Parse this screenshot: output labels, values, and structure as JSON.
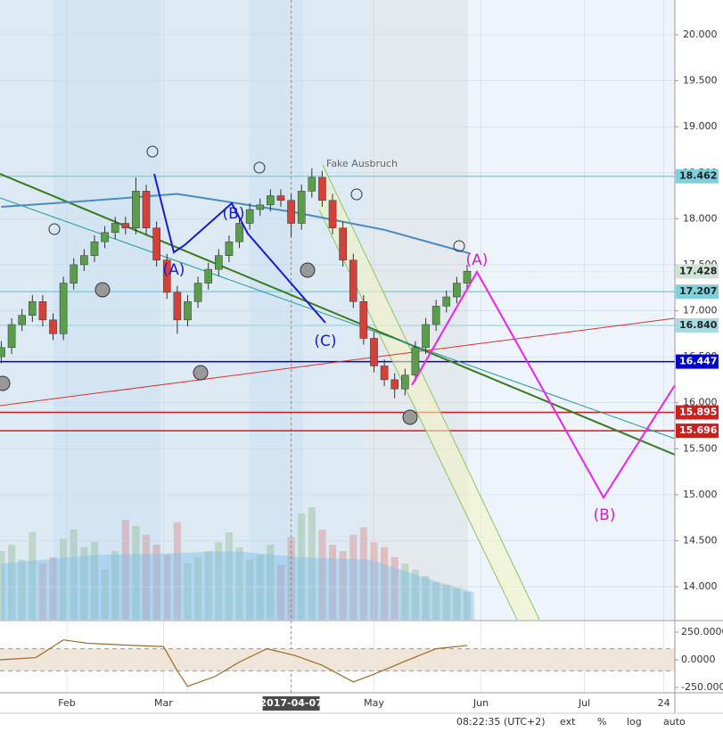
{
  "chart_data": {
    "type": "candlestick",
    "xlim": [
      12.62,
      208.2
    ],
    "ylim": [
      13.642,
      20.378
    ],
    "xticks": [
      {
        "value": 32,
        "label": "Feb"
      },
      {
        "value": 60,
        "label": "Mar"
      },
      {
        "value": 97,
        "label": "2017-04-07"
      },
      {
        "value": 121,
        "label": "May"
      },
      {
        "value": 152,
        "label": "Jun"
      },
      {
        "value": 182,
        "label": "Jul"
      },
      {
        "value": 205,
        "label": "24"
      }
    ],
    "crosshair": 97,
    "yticks": [
      {
        "value": 14,
        "label": "14.000"
      },
      {
        "value": 14.5,
        "label": "14.500"
      },
      {
        "value": 15,
        "label": "15.000"
      },
      {
        "value": 15.5,
        "label": "15.500"
      },
      {
        "value": 16,
        "label": "16.000"
      },
      {
        "value": 16.5,
        "label": "16.500"
      },
      {
        "value": 17,
        "label": "17.000"
      },
      {
        "value": 17.5,
        "label": "17.500"
      },
      {
        "value": 18,
        "label": "18.000"
      },
      {
        "value": 18.5,
        "label": "18.500"
      },
      {
        "value": 19,
        "label": "19.000"
      },
      {
        "value": 19.5,
        "label": "19.500"
      },
      {
        "value": 20,
        "label": "20.000"
      }
    ],
    "up_color": "#5a9e4b",
    "down_color": "#d2423b",
    "x": [
      13,
      16,
      19,
      22,
      25,
      28,
      31,
      34,
      37,
      40,
      43,
      46,
      49,
      52,
      55,
      58,
      61,
      64,
      67,
      70,
      73,
      76,
      79,
      82,
      85,
      88,
      91,
      94,
      97,
      100,
      103,
      106,
      109,
      112,
      115,
      118,
      121,
      124,
      127,
      130,
      133,
      136,
      139,
      142,
      145,
      148
    ],
    "candles": [
      [
        16.5,
        16.67,
        16.43,
        16.6
      ],
      [
        16.6,
        16.92,
        16.53,
        16.85
      ],
      [
        16.85,
        17.02,
        16.78,
        16.95
      ],
      [
        16.95,
        17.17,
        16.88,
        17.1
      ],
      [
        17.1,
        17.17,
        16.83,
        16.9
      ],
      [
        16.9,
        16.97,
        16.68,
        16.75
      ],
      [
        16.75,
        17.37,
        16.68,
        17.3
      ],
      [
        17.3,
        17.57,
        17.23,
        17.5
      ],
      [
        17.5,
        17.67,
        17.43,
        17.6
      ],
      [
        17.6,
        17.82,
        17.53,
        17.75
      ],
      [
        17.75,
        17.92,
        17.68,
        17.85
      ],
      [
        17.85,
        18.02,
        17.78,
        17.95
      ],
      [
        17.95,
        18.02,
        17.83,
        17.9
      ],
      [
        17.9,
        18.45,
        17.83,
        18.3
      ],
      [
        18.3,
        18.37,
        17.83,
        17.9
      ],
      [
        17.9,
        17.97,
        17.48,
        17.55
      ],
      [
        17.55,
        17.62,
        17.13,
        17.2
      ],
      [
        17.2,
        17.27,
        16.75,
        16.9
      ],
      [
        16.9,
        17.17,
        16.83,
        17.1
      ],
      [
        17.1,
        17.37,
        17.03,
        17.3
      ],
      [
        17.3,
        17.52,
        17.23,
        17.45
      ],
      [
        17.45,
        17.67,
        17.38,
        17.6
      ],
      [
        17.6,
        17.82,
        17.53,
        17.75
      ],
      [
        17.75,
        18.02,
        17.68,
        17.95
      ],
      [
        17.95,
        18.17,
        17.88,
        18.1
      ],
      [
        18.1,
        18.22,
        18.03,
        18.15
      ],
      [
        18.15,
        18.32,
        18.08,
        18.25
      ],
      [
        18.25,
        18.32,
        18.13,
        18.2
      ],
      [
        18.2,
        18.27,
        17.8,
        17.95
      ],
      [
        17.95,
        18.37,
        17.88,
        18.3
      ],
      [
        18.3,
        18.55,
        18.23,
        18.45
      ],
      [
        18.45,
        18.52,
        18.13,
        18.2
      ],
      [
        18.2,
        18.27,
        17.83,
        17.9
      ],
      [
        17.9,
        17.97,
        17.48,
        17.55
      ],
      [
        17.55,
        17.62,
        17.03,
        17.1
      ],
      [
        17.1,
        17.17,
        16.63,
        16.7
      ],
      [
        16.7,
        16.77,
        16.33,
        16.4
      ],
      [
        16.4,
        16.47,
        16.18,
        16.25
      ],
      [
        16.25,
        16.32,
        16.05,
        16.15
      ],
      [
        16.15,
        16.37,
        16.08,
        16.3
      ],
      [
        16.3,
        16.67,
        16.23,
        16.6
      ],
      [
        16.6,
        16.92,
        16.53,
        16.85
      ],
      [
        16.85,
        17.12,
        16.78,
        17.05
      ],
      [
        17.05,
        17.22,
        16.98,
        17.15
      ],
      [
        17.15,
        17.37,
        17.08,
        17.3
      ],
      [
        17.3,
        17.5,
        17.23,
        17.43
      ]
    ],
    "volume": {
      "lim": [
        0,
        100
      ],
      "values": [
        55,
        60,
        48,
        70,
        45,
        50,
        65,
        72,
        58,
        62,
        40,
        55,
        80,
        75,
        68,
        60,
        52,
        78,
        45,
        50,
        55,
        62,
        70,
        58,
        48,
        52,
        60,
        44,
        66,
        85,
        90,
        72,
        60,
        55,
        68,
        74,
        62,
        58,
        50,
        45,
        40,
        35,
        30,
        28,
        25,
        22
      ]
    },
    "volume_ma": {
      "x": [
        13,
        40,
        60,
        80,
        100,
        120,
        140,
        150
      ],
      "values": [
        45,
        52,
        53,
        55,
        50,
        48,
        30,
        22
      ],
      "color": "#7fbfea"
    },
    "moving_average": {
      "x": [
        13,
        40,
        64,
        98,
        124,
        149
      ],
      "values": [
        18.13,
        18.2,
        18.27,
        18.07,
        17.88,
        17.62
      ],
      "color": "#4a8cc2"
    },
    "levels": [
      {
        "value": 18.462,
        "color": "#7fd0dc",
        "text_color": "#222"
      },
      {
        "value": 17.428,
        "color": "#cfe3d6",
        "text_color": "#222"
      },
      {
        "value": 17.207,
        "color": "#7fd0dc",
        "text_color": "#222"
      },
      {
        "value": 16.84,
        "label": "16.840",
        "color": "#a6dbe3",
        "text_color": "#222"
      },
      {
        "value": 16.447,
        "color": "#0000cc",
        "text_color": "#fff"
      },
      {
        "value": 15.895,
        "color": "#cc1f1f",
        "text_color": "#fff"
      },
      {
        "value": 15.696,
        "color": "#cc1f1f",
        "text_color": "#fff"
      }
    ],
    "annotations": {
      "fake": "Fake Ausbruch",
      "blue_a": "(A)",
      "blue_b": "(B)",
      "blue_c": "(C)",
      "pink_a": "(A)",
      "pink_b": "(B)"
    },
    "oscillator": {
      "ylim": [
        -282,
        347
      ],
      "yticks": [
        {
          "value": 250,
          "label": "250.0000"
        },
        {
          "value": 0,
          "label": "0.0000"
        },
        {
          "value": -250,
          "label": "-250.0000"
        }
      ],
      "bands": [
        100,
        -100
      ],
      "color": "#a0682a",
      "x": [
        12.62,
        23,
        31,
        38,
        51,
        60,
        64,
        67,
        75,
        82,
        90,
        98,
        106,
        115,
        121,
        131,
        139,
        148
      ],
      "values": [
        0,
        20,
        180,
        150,
        130,
        120,
        -100,
        -240,
        -150,
        -20,
        100,
        40,
        -50,
        -200,
        -130,
        0,
        100,
        130
      ]
    },
    "status": {
      "time": "08:22:35 (UTC+2)",
      "ext": "ext",
      "pct": "%",
      "log": "log",
      "auto": "auto"
    }
  }
}
